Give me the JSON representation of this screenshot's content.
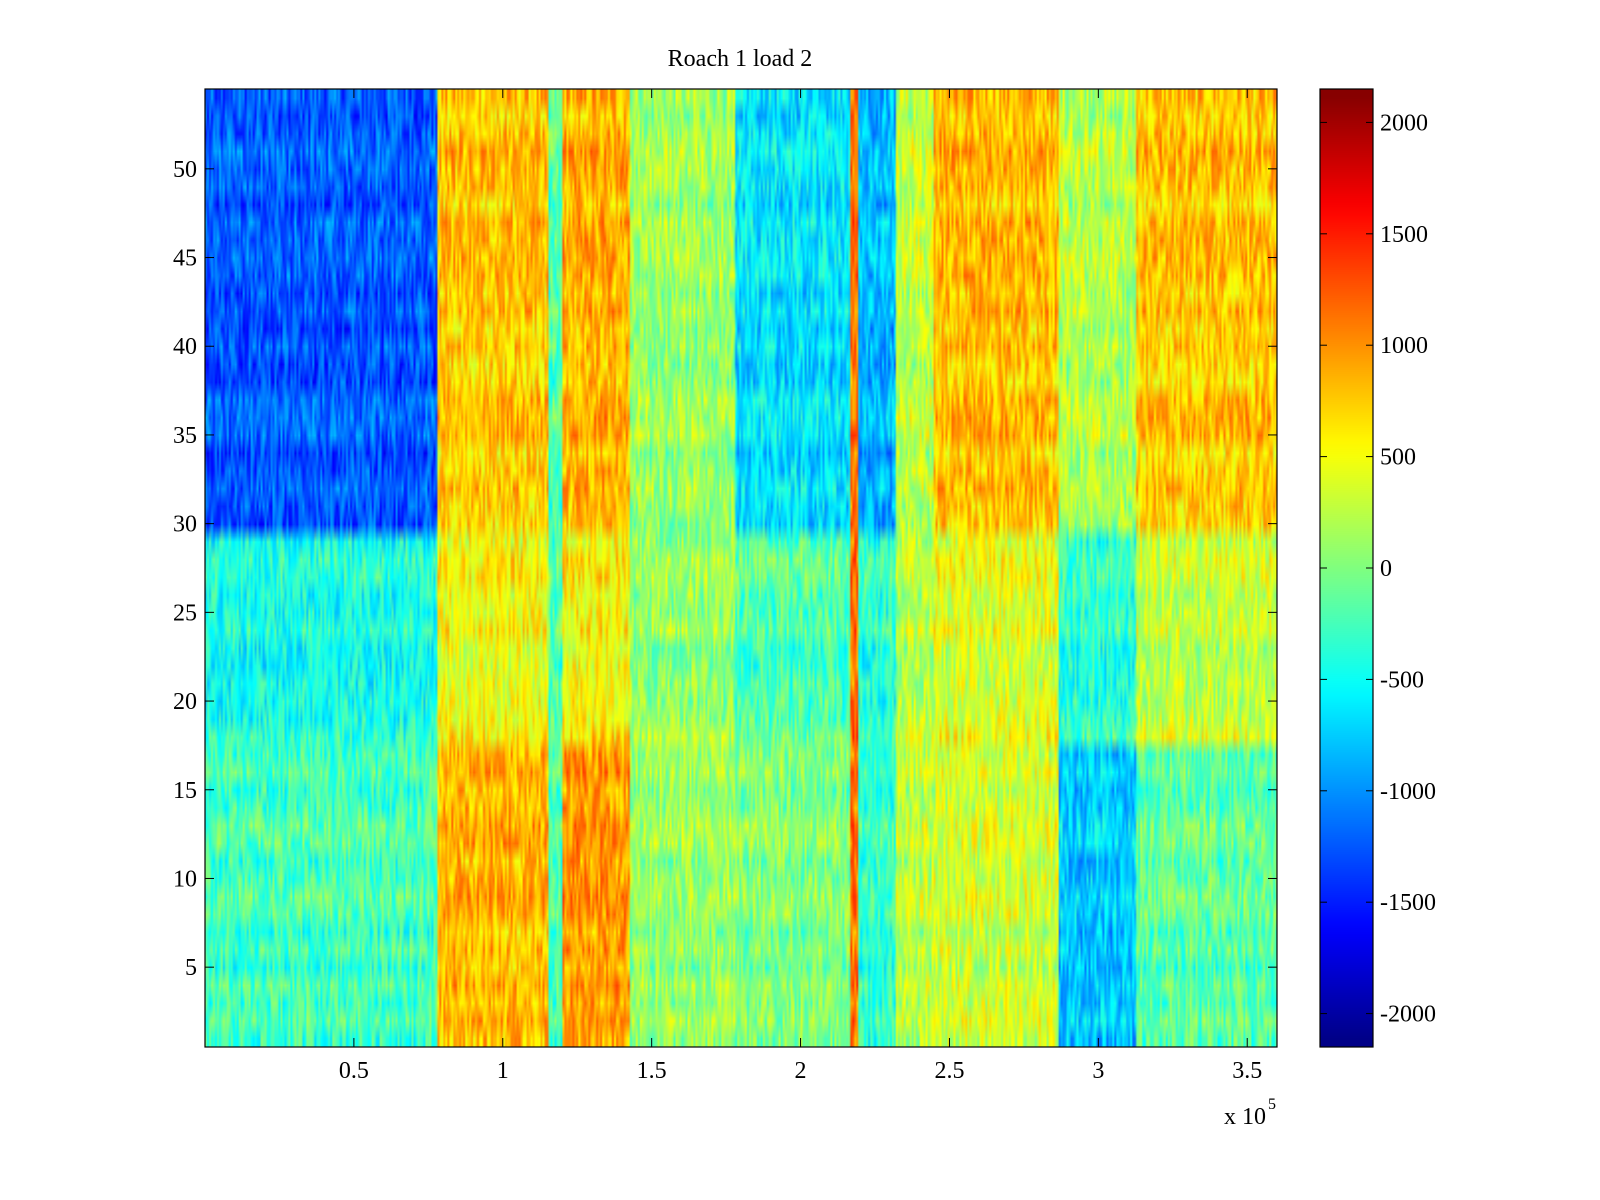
{
  "chart_data": {
    "type": "heatmap",
    "title": "Roach 1 load 2",
    "xlabel": "",
    "ylabel": "",
    "x_multiplier_label": "x 10",
    "x_multiplier_exponent": "5",
    "xlim": [
      0,
      360000
    ],
    "ylim": [
      0.5,
      54.5
    ],
    "x_ticks": [
      50000,
      100000,
      150000,
      200000,
      250000,
      300000,
      350000
    ],
    "x_tick_labels": [
      "0.5",
      "1",
      "1.5",
      "2",
      "2.5",
      "3",
      "3.5"
    ],
    "y_ticks": [
      5,
      10,
      15,
      20,
      25,
      30,
      35,
      40,
      45,
      50
    ],
    "y_tick_labels": [
      "5",
      "10",
      "15",
      "20",
      "25",
      "30",
      "35",
      "40",
      "45",
      "50"
    ],
    "rows": 54,
    "colorbar": {
      "colormap": "jet",
      "clim": [
        -2150,
        2150
      ],
      "ticks": [
        -2000,
        -1500,
        -1000,
        -500,
        0,
        500,
        1000,
        1500,
        2000
      ],
      "tick_labels": [
        "-2000",
        "-1500",
        "-1000",
        "-500",
        "0",
        "500",
        "1000",
        "1500",
        "2000"
      ]
    },
    "bands": [
      {
        "x": [
          0,
          78000
        ],
        "levels": {
          "top_rows_30_54": -1250,
          "rows_18_29": -450,
          "rows_1_17": -250
        }
      },
      {
        "x": [
          78000,
          115000
        ],
        "levels": {
          "top_rows_30_54": 750,
          "rows_18_29": 500,
          "rows_1_17": 850
        }
      },
      {
        "x": [
          115000,
          120000
        ],
        "levels": {
          "all": -200
        }
      },
      {
        "x": [
          120000,
          143000
        ],
        "levels": {
          "top_rows_30_54": 850,
          "rows_18_29": 550,
          "rows_1_17": 950
        }
      },
      {
        "x": [
          143000,
          178000
        ],
        "levels": {
          "all": 100
        }
      },
      {
        "x": [
          178000,
          217000
        ],
        "levels": {
          "top_rows_30_54": -650,
          "rows_18_29": -200,
          "rows_1_17": 0
        }
      },
      {
        "x": [
          217000,
          219000
        ],
        "levels": {
          "all": 1100
        }
      },
      {
        "x": [
          219000,
          232000
        ],
        "levels": {
          "top_rows_30_54": -850,
          "rows_18_29": -350,
          "rows_1_17": -300
        }
      },
      {
        "x": [
          232000,
          245000
        ],
        "levels": {
          "all": 250
        }
      },
      {
        "x": [
          245000,
          287000
        ],
        "levels": {
          "top_rows_30_54": 800,
          "rows_18_29": 400,
          "rows_1_17": 350
        }
      },
      {
        "x": [
          287000,
          313000
        ],
        "levels": {
          "top_rows_30_54": 200,
          "rows_18_29": -350,
          "rows_1_17": -750
        }
      },
      {
        "x": [
          313000,
          360000
        ],
        "levels": {
          "top_rows_30_54": 750,
          "rows_18_29": 300,
          "rows_1_17": -150
        }
      }
    ]
  }
}
